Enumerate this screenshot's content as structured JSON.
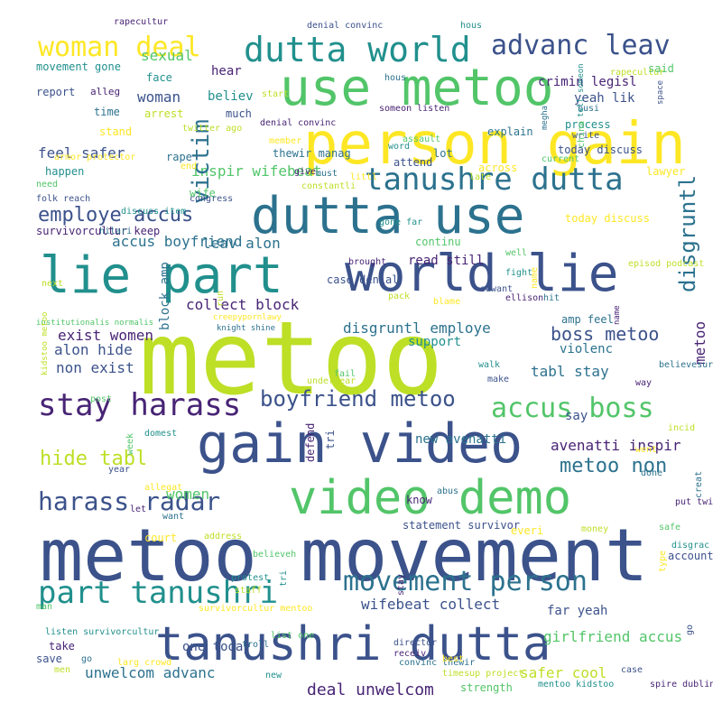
{
  "palette": {
    "background": "#ffffff",
    "lime": "#bddf26",
    "green": "#52c569",
    "teal": "#21908d",
    "blue": "#3b528b",
    "navy": "#482475",
    "slate": "#2c728e",
    "yellow": "#fde725"
  },
  "words": {
    "w1": "metoo",
    "w2": "metoo movement",
    "w3": "person gain",
    "w4": "gain video",
    "w5": "use metoo",
    "w6": "dutta use",
    "w7": "lie part",
    "w8": "world lie",
    "w9": "video demo",
    "w10": "tanushri dutta",
    "w11": "dutta world",
    "w12": "stay harass",
    "w13": "tanushre dutta",
    "w14": "part tanushri",
    "w15": "movement person",
    "w16": "accus boss",
    "w17": "advanc leav",
    "w18": "woman deal",
    "w19": "harass radar",
    "w20": "boyfriend metoo",
    "w21": "employe accus",
    "w22": "boss metoo",
    "w23": "metoo non",
    "w24": "hide tabl",
    "w25": "deal unwelcom",
    "w26": "wifebeat collect",
    "w27": "girlfriend accus",
    "w28": "accus boyfriend",
    "w29": "collect block",
    "w30": "disgruntl employe",
    "w31": "safer cool",
    "w32": "unwelcom advanc",
    "w33": "feel safer",
    "w34": "exist women",
    "w35": "leav alon",
    "w36": "avenatti inspir",
    "w37": "new avenatti",
    "w38": "tabl stay",
    "w39": "non exist",
    "w40": "alon hide",
    "w41": "inspir wifebeat",
    "w42": "amp feel",
    "w43": "women",
    "w44": "support",
    "w45": "read still",
    "w46": "violenc",
    "w47": "say",
    "w48": "far yeah",
    "w49": "one today",
    "w50": "today discuss",
    "w51": "explain",
    "w52": "yeah lik",
    "w53": "victim",
    "w54": "disgruntl",
    "w55": "metoo",
    "w56": "block amp",
    "w57": "defend",
    "w58": "tri"
  },
  "small_words": {
    "s1": "movement gone",
    "s2": "report",
    "s3": "alleg",
    "s4": "time",
    "s5": "stand",
    "s6": "arrest",
    "s7": "sexual",
    "s8": "face",
    "s9": "woman",
    "s10": "hear",
    "s11": "rape",
    "s12": "end",
    "s13": "twitter ago",
    "s14": "wife",
    "s15": "believ",
    "s16": "much",
    "s17": "denial convinc",
    "s18": "thewir manag",
    "s19": "member",
    "s20": "start",
    "s21": "need",
    "s22": "happen",
    "s23": "folk reach",
    "s24": "survivorcultur keep",
    "s25": "hilari",
    "s26": "armor protector",
    "s27": "next",
    "s28": "institutionalis normalis",
    "s29": "discuss item",
    "s30": "congress",
    "s31": "give",
    "s32": "must",
    "s33": "littl",
    "s34": "constantli",
    "s35": "assault",
    "s36": "word",
    "s37": "attend",
    "s38": "someon listen",
    "s39": "lot",
    "s40": "across",
    "s41": "late",
    "s42": "current",
    "s43": "process",
    "s44": "write",
    "s45": "crimin legisl",
    "s46": "busi",
    "s47": "lawyer",
    "s48": "rapecultur",
    "s49": "said",
    "s50": "hous",
    "s51": "denial convinc",
    "s52": "rapecultur",
    "s53": "hous",
    "s54": "today discuss",
    "s55": "episod podcast",
    "s56": "well",
    "s57": "fight",
    "s58": "sawant",
    "s59": "ellison",
    "s60": "hit",
    "s61": "blame",
    "s62": "pack",
    "s63": "continu",
    "s64": "gone far",
    "s65": "case denial",
    "s66": "brought",
    "s67": "knight shine",
    "s68": "creepypornlawy",
    "s69": "underwear",
    "s70": "fail",
    "s71": "walk",
    "s72": "make",
    "s73": "way",
    "s74": "believesurvivor",
    "s75": "went",
    "s76": "incid",
    "s77": "post",
    "s78": "domest",
    "s79": "year",
    "s80": "let",
    "s81": "want",
    "s82": "court",
    "s83": "address",
    "s84": "believeh",
    "s85": "protest",
    "s86": "statement survivor",
    "s87": "know",
    "s88": "abus",
    "s89": "everi",
    "s90": "money",
    "s91": "safe",
    "s92": "disgrac",
    "s93": "account",
    "s94": "put twitter",
    "s95": "done",
    "s96": "survivorcultur mentoo",
    "s97": "staff",
    "s98": "man",
    "s99": "listen survivorcultur",
    "s100": "save",
    "s101": "take",
    "s102": "go",
    "s103": "larg crowd",
    "s104": "men",
    "s105": "list one",
    "s106": "new",
    "s107": "director",
    "s108": "receiv",
    "s109": "convinc thewir",
    "s110": "best",
    "s111": "timesup project",
    "s112": "strength",
    "s113": "mentoo kidstoo",
    "s114": "case",
    "s115": "spire dublin",
    "s116": "troll",
    "s117": "allegat"
  },
  "rotated_small": {
    "r1": "kidstoo metoo",
    "r2": "china",
    "r3": "tell someon",
    "r4": "space",
    "r5": "name",
    "r6": "creat",
    "r7": "type",
    "r8": "run",
    "r9": "week",
    "r10": "tri",
    "r11": "go",
    "r12": "stay",
    "r13": "megha",
    "r14": "name"
  },
  "colors": {
    "w1": "#bddf26",
    "w2": "#3b528b",
    "w3": "#fde725",
    "w4": "#3b528b",
    "w5": "#52c569",
    "w6": "#2c728e",
    "w7": "#21908d",
    "w8": "#3b528b",
    "w9": "#52c569",
    "w10": "#3b528b",
    "w11": "#21908d",
    "w12": "#482475",
    "w13": "#2c728e",
    "w14": "#21908d",
    "w15": "#2c728e",
    "w16": "#52c569",
    "w17": "#3b528b",
    "w18": "#fde725",
    "w19": "#3b528b",
    "w20": "#3b528b",
    "w21": "#3b528b",
    "w22": "#3b528b",
    "w23": "#2c728e",
    "w24": "#bddf26",
    "w25": "#482475",
    "w26": "#3b528b",
    "w27": "#52c569",
    "w28": "#2c728e",
    "w29": "#482475",
    "w30": "#2c728e",
    "w31": "#bddf26",
    "w32": "#2c728e",
    "w33": "#3b528b",
    "w34": "#482475",
    "w35": "#2c728e",
    "w36": "#482475",
    "w37": "#2c728e",
    "w38": "#2c728e",
    "w39": "#3b528b",
    "w40": "#3b528b",
    "w41": "#52c569",
    "w42": "#2c728e",
    "w43": "#52c569",
    "w44": "#21908d",
    "w45": "#482475",
    "w46": "#2c728e",
    "w47": "#3b528b",
    "w48": "#3b528b",
    "w49": "#3b528b",
    "w50": "#3b528b",
    "w51": "#2c728e",
    "w52": "#3b528b",
    "w53": "#2c728e",
    "w54": "#2c728e",
    "w55": "#482475",
    "w56": "#2c728e",
    "w57": "#482475",
    "w58": "#3b528b"
  }
}
